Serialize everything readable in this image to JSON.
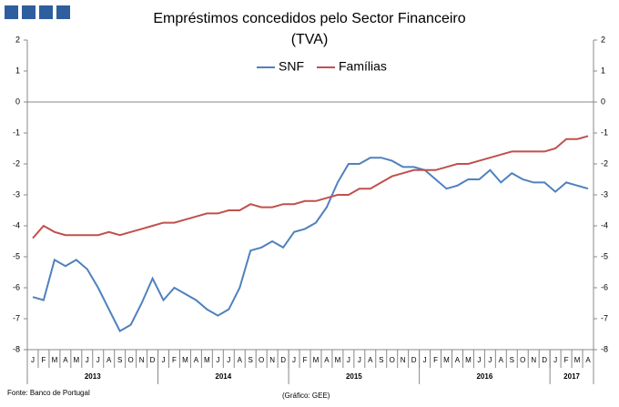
{
  "chart_data": {
    "type": "line",
    "title": "Empréstimos concedidos pelo Sector Financeiro",
    "subtitle": "(TVA)",
    "categories": [
      "J",
      "F",
      "M",
      "A",
      "M",
      "J",
      "J",
      "A",
      "S",
      "O",
      "N",
      "D",
      "J",
      "F",
      "M",
      "A",
      "M",
      "J",
      "J",
      "A",
      "S",
      "O",
      "N",
      "D",
      "J",
      "F",
      "M",
      "A",
      "M",
      "J",
      "J",
      "A",
      "S",
      "O",
      "N",
      "D",
      "J",
      "F",
      "M",
      "A",
      "M",
      "J",
      "J",
      "A",
      "S",
      "O",
      "N",
      "D",
      "J",
      "F",
      "M",
      "A"
    ],
    "x_groups": [
      "2013",
      "2014",
      "2015",
      "2016",
      "2017"
    ],
    "series": [
      {
        "name": "SNF",
        "color": "#4f81bd",
        "values": [
          -6.3,
          -6.4,
          -5.1,
          -5.3,
          -5.1,
          -5.4,
          -6.0,
          -6.7,
          -7.4,
          -7.2,
          -6.5,
          -5.7,
          -6.4,
          -6.0,
          -6.2,
          -6.4,
          -6.7,
          -6.9,
          -6.7,
          -6.0,
          -4.8,
          -4.7,
          -4.5,
          -4.7,
          -4.2,
          -4.1,
          -3.9,
          -3.4,
          -2.6,
          -2.0,
          -2.0,
          -1.8,
          -1.8,
          -1.9,
          -2.1,
          -2.1,
          -2.2,
          -2.5,
          -2.8,
          -2.7,
          -2.5,
          -2.5,
          -2.2,
          -2.6,
          -2.3,
          -2.5,
          -2.6,
          -2.6,
          -2.9,
          -2.6,
          -2.7,
          -2.8
        ]
      },
      {
        "name": "Famílias",
        "color": "#c0504d",
        "values": [
          -4.4,
          -4.0,
          -4.2,
          -4.3,
          -4.3,
          -4.3,
          -4.3,
          -4.2,
          -4.3,
          -4.2,
          -4.1,
          -4.0,
          -3.9,
          -3.9,
          -3.8,
          -3.7,
          -3.6,
          -3.6,
          -3.5,
          -3.5,
          -3.3,
          -3.4,
          -3.4,
          -3.3,
          -3.3,
          -3.2,
          -3.2,
          -3.1,
          -3.0,
          -3.0,
          -2.8,
          -2.8,
          -2.6,
          -2.4,
          -2.3,
          -2.2,
          -2.2,
          -2.2,
          -2.1,
          -2.0,
          -2.0,
          -1.9,
          -1.8,
          -1.7,
          -1.6,
          -1.6,
          -1.6,
          -1.6,
          -1.5,
          -1.2,
          -1.2,
          -1.1
        ]
      }
    ],
    "ylim": [
      -8,
      2
    ],
    "yticks": [
      -8,
      -7,
      -6,
      -5,
      -4,
      -3,
      -2,
      -1,
      0,
      1,
      2
    ],
    "y2lim": [
      -8,
      2
    ],
    "y2ticks": [
      -8,
      -7,
      -6,
      -5,
      -4,
      -3,
      -2,
      -1,
      0,
      1,
      2
    ],
    "legend": "top",
    "source": "Fonte: Banco de Portugal",
    "credit": "(Gráfico: GEE)"
  }
}
